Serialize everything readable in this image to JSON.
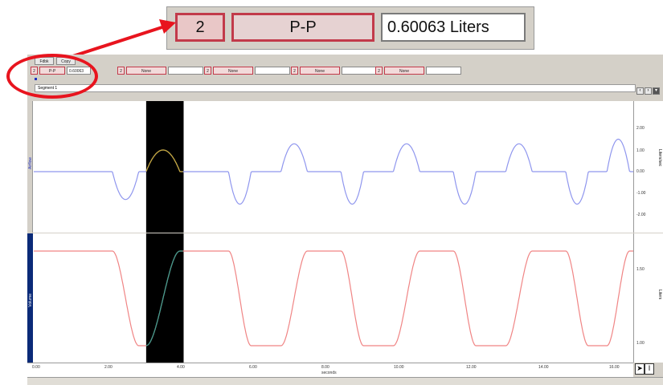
{
  "callout": {
    "channel": "2",
    "measurement": "P-P",
    "value": "0.60063 Liters"
  },
  "toolbar": {
    "buttons": [
      "Fdbk",
      "Copy"
    ],
    "measurements": [
      {
        "channel": "2",
        "type": "P-P",
        "value": "0.60063"
      },
      {
        "channel": "2",
        "type": "None",
        "value": ""
      },
      {
        "channel": "2",
        "type": "None",
        "value": ""
      },
      {
        "channel": "2",
        "type": "None",
        "value": ""
      },
      {
        "channel": "2",
        "type": "None",
        "value": ""
      }
    ],
    "segment_label": "Segment 1"
  },
  "top_panel": {
    "channel_label": "Airflow",
    "units": "Liters/sec",
    "y_ticks": [
      "2.00",
      "1.00",
      "0.00",
      "-1.00",
      "-2.00"
    ],
    "trace_color": "#8f96ee",
    "highlight_color": "#c8a830"
  },
  "bottom_panel": {
    "channel_label": "Volume",
    "units": "Liters",
    "y_ticks": [
      "1.50",
      "1.00"
    ],
    "trace_color": "#f08585",
    "highlight_color": "#3a9c8e"
  },
  "x_axis": {
    "label": "seconds",
    "ticks": [
      "0.00",
      "2.00",
      "4.00",
      "6.00",
      "8.00",
      "10.00",
      "12.00",
      "14.00",
      "16.00"
    ],
    "range": [
      0,
      16
    ],
    "selection": [
      3.0,
      4.0
    ]
  }
}
